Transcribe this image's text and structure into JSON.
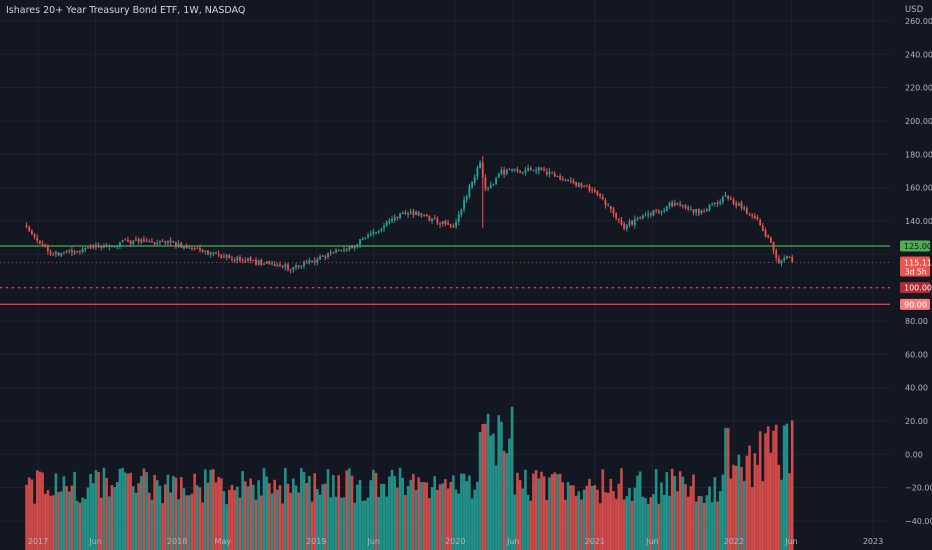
{
  "header": {
    "title": "Ishares 20+ Year Treasury Bond ETF, 1W, NASDAQ",
    "currency": "USD"
  },
  "colors": {
    "background": "#131722",
    "grid": "#1e222d",
    "up": "#26a69a",
    "down": "#ef5350",
    "support_line": "#4caf50",
    "resistance_line": "#f23645",
    "axis_text": "#b2b5be"
  },
  "price_labels": {
    "level_125": "125.00",
    "current_price": "115.11",
    "countdown": "3d 5h",
    "level_100": "100.00",
    "level_90": "90.00"
  },
  "chart_data": {
    "type": "candlestick",
    "title": "Ishares 20+ Year Treasury Bond ETF, 1W, NASDAQ",
    "y_unit": "USD",
    "x_tick_labels": [
      "2017",
      "Jun",
      "2018",
      "May",
      "2019",
      "Jun",
      "2020",
      "Jun",
      "2021",
      "Jun",
      "2022",
      "Jun",
      "2023"
    ],
    "y_tick_labels": [
      "260.00",
      "240.00",
      "220.00",
      "200.00",
      "180.00",
      "160.00",
      "140.00",
      "80.00",
      "60.00",
      "40.00",
      "20.00",
      "0.00",
      "−20.00",
      "−40.00"
    ],
    "price_axis_range": [
      -40,
      260
    ],
    "grid": true,
    "horizontal_levels": [
      {
        "value": 125.0,
        "style": "solid",
        "color": "#4caf50"
      },
      {
        "value": 100.0,
        "style": "dotted",
        "color": "#f23645"
      },
      {
        "value": 90.0,
        "style": "solid",
        "color": "#f23645"
      }
    ],
    "last_price": 115.11,
    "price_trend_keypoints": [
      {
        "date": "2016-11-25",
        "close": 137
      },
      {
        "date": "2016-12-23",
        "close": 130
      },
      {
        "date": "2017-02-10",
        "close": 120
      },
      {
        "date": "2017-09-08",
        "close": 128
      },
      {
        "date": "2018-01-05",
        "close": 126
      },
      {
        "date": "2018-05-18",
        "close": 118
      },
      {
        "date": "2018-10-26",
        "close": 112
      },
      {
        "date": "2019-03-29",
        "close": 124
      },
      {
        "date": "2019-08-30",
        "close": 146
      },
      {
        "date": "2019-12-27",
        "close": 136
      },
      {
        "date": "2020-03-06",
        "close": 176
      },
      {
        "date": "2020-03-20",
        "close": 158
      },
      {
        "date": "2020-05-01",
        "close": 169
      },
      {
        "date": "2020-08-07",
        "close": 171
      },
      {
        "date": "2020-12-31",
        "close": 158
      },
      {
        "date": "2021-03-19",
        "close": 137
      },
      {
        "date": "2021-07-30",
        "close": 151
      },
      {
        "date": "2021-10-01",
        "close": 145
      },
      {
        "date": "2021-12-10",
        "close": 154
      },
      {
        "date": "2022-03-04",
        "close": 142
      },
      {
        "date": "2022-04-29",
        "close": 116
      },
      {
        "date": "2022-05-27",
        "close": 119
      },
      {
        "date": "2022-06-03",
        "close": 115.11
      }
    ],
    "volume_note": "oscillator-style histogram in lower pane, values shown on same axis (approx -40 to 35)"
  }
}
